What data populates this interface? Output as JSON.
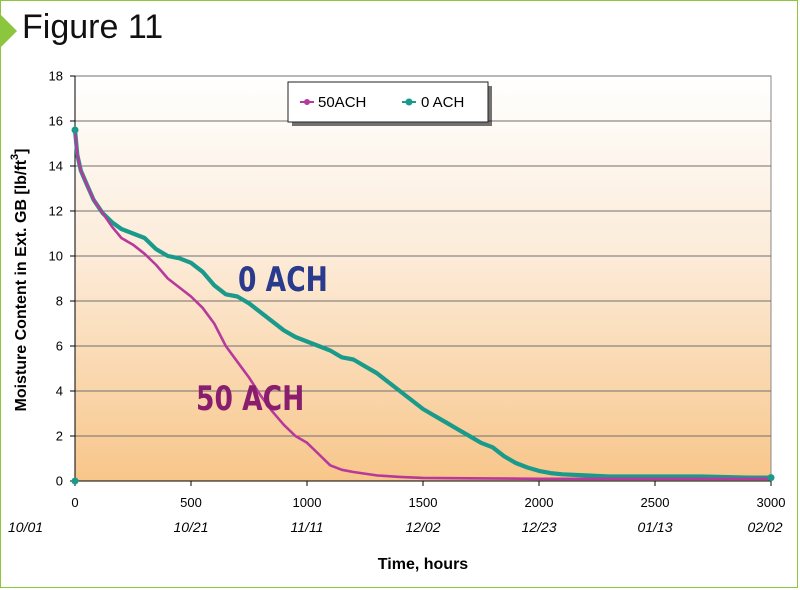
{
  "figure_label": "Figure 11",
  "colors": {
    "frame": "#8cc63f",
    "series_50ach": "#b8399c",
    "series_0ach": "#1a9a8a",
    "label_0ach": "#2a3a8c",
    "label_50ach": "#8a1d6e"
  },
  "chart_data": {
    "type": "line",
    "title": "",
    "xlabel": "Time, hours",
    "ylabel": "Moisture Content in Ext. GB [lb/ft",
    "ylabel_sup": "3",
    "ylabel_close": "]",
    "xlim": [
      0,
      3000
    ],
    "ylim": [
      0,
      18
    ],
    "x_ticks": [
      "0",
      "500",
      "1000",
      "1500",
      "2000",
      "2500",
      "3000"
    ],
    "y_ticks": [
      "0",
      "2",
      "4",
      "6",
      "8",
      "10",
      "12",
      "14",
      "16",
      "18"
    ],
    "date_ticks": [
      "10/01",
      "10/21",
      "11/11",
      "12/02",
      "12/23",
      "01/13",
      "02/02"
    ],
    "grid": true,
    "legend_position": "top-center",
    "legend": [
      "50ACH",
      "0 ACH"
    ],
    "annotations": [
      "0 ACH",
      "50 ACH"
    ],
    "series": [
      {
        "name": "50ACH",
        "x": [
          0,
          10,
          25,
          50,
          80,
          120,
          160,
          200,
          250,
          300,
          350,
          400,
          450,
          500,
          550,
          600,
          650,
          700,
          750,
          800,
          850,
          900,
          950,
          1000,
          1050,
          1100,
          1150,
          1200,
          1300,
          1400,
          1500,
          1700,
          2000,
          2300,
          2600,
          3000
        ],
        "y": [
          15.6,
          14.5,
          13.8,
          13.2,
          12.5,
          11.9,
          11.3,
          10.8,
          10.5,
          10.1,
          9.6,
          9.0,
          8.6,
          8.2,
          7.7,
          7.0,
          6.0,
          5.3,
          4.6,
          3.8,
          3.1,
          2.5,
          2.0,
          1.7,
          1.2,
          0.7,
          0.5,
          0.4,
          0.25,
          0.18,
          0.14,
          0.12,
          0.1,
          0.1,
          0.1,
          0.1
        ]
      },
      {
        "name": "0 ACH",
        "x": [
          0,
          10,
          25,
          50,
          80,
          120,
          160,
          200,
          250,
          300,
          350,
          400,
          450,
          500,
          550,
          600,
          650,
          700,
          750,
          800,
          850,
          900,
          950,
          1000,
          1050,
          1100,
          1150,
          1200,
          1250,
          1300,
          1350,
          1400,
          1450,
          1500,
          1550,
          1600,
          1650,
          1700,
          1750,
          1800,
          1850,
          1900,
          1950,
          2000,
          2050,
          2100,
          2200,
          2300,
          2400,
          2500,
          2700,
          2900,
          3000
        ],
        "y": [
          15.6,
          14.5,
          13.8,
          13.2,
          12.5,
          11.9,
          11.5,
          11.2,
          11.0,
          10.8,
          10.3,
          10.0,
          9.9,
          9.7,
          9.3,
          8.7,
          8.3,
          8.2,
          7.9,
          7.5,
          7.1,
          6.7,
          6.4,
          6.2,
          6.0,
          5.8,
          5.5,
          5.4,
          5.1,
          4.8,
          4.4,
          4.0,
          3.6,
          3.2,
          2.9,
          2.6,
          2.3,
          2.0,
          1.7,
          1.5,
          1.1,
          0.8,
          0.6,
          0.45,
          0.35,
          0.3,
          0.25,
          0.2,
          0.2,
          0.2,
          0.2,
          0.15,
          0.15
        ]
      }
    ]
  }
}
